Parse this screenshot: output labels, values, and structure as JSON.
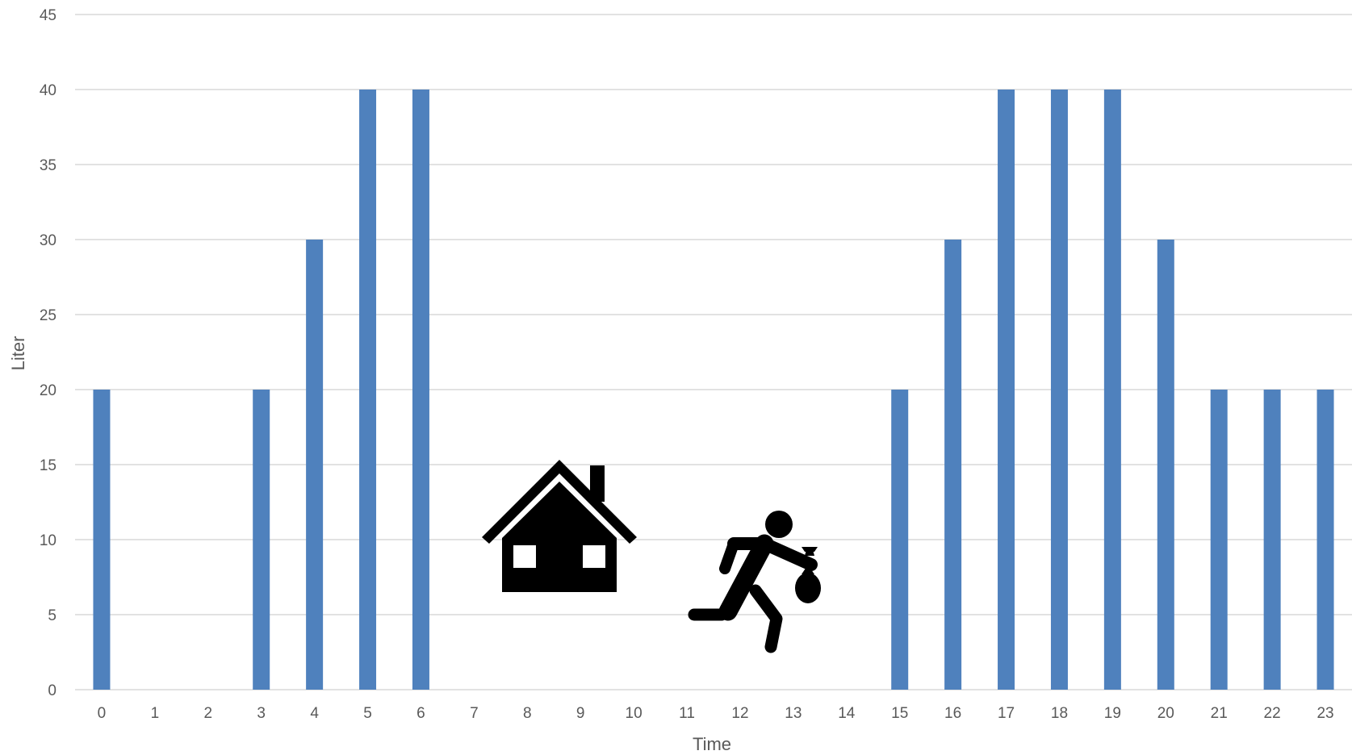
{
  "chart_data": {
    "type": "bar",
    "xlabel": "Time",
    "ylabel": "Liter",
    "categories": [
      "0",
      "1",
      "2",
      "3",
      "4",
      "5",
      "6",
      "7",
      "8",
      "9",
      "10",
      "11",
      "12",
      "13",
      "14",
      "15",
      "16",
      "17",
      "18",
      "19",
      "20",
      "21",
      "22",
      "23"
    ],
    "values": [
      20,
      0,
      0,
      20,
      30,
      40,
      40,
      0,
      0,
      0,
      0,
      0,
      0,
      0,
      0,
      20,
      30,
      40,
      40,
      40,
      30,
      20,
      20,
      20
    ],
    "ylim": [
      0,
      45
    ],
    "yticks": [
      0,
      5,
      10,
      15,
      20,
      25,
      30,
      35,
      40,
      45
    ],
    "grid": "horizontal",
    "legend": "none",
    "colors": {
      "bar": "#4f81bd",
      "grid": "#d9d9d9",
      "text": "#595959",
      "icon": "#000000"
    }
  },
  "icons": [
    "house-icon",
    "thief-running-icon"
  ]
}
